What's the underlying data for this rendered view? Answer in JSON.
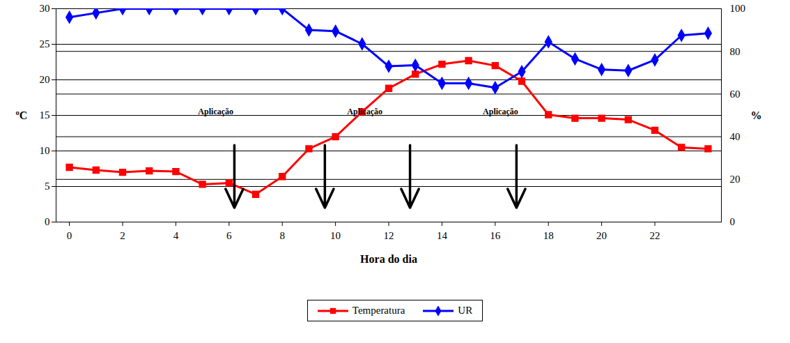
{
  "chart_data": {
    "type": "line",
    "xlabel": "Hora do dia",
    "ylabel": "ºC",
    "y2label": "%",
    "x": [
      0,
      1,
      2,
      3,
      4,
      5,
      6,
      7,
      8,
      9,
      10,
      11,
      12,
      13,
      14,
      15,
      16,
      17,
      18,
      19,
      20,
      21,
      22,
      23,
      24
    ],
    "series": [
      {
        "name": "Temperatura",
        "color": "#ff0000",
        "marker": "square",
        "values": [
          7.7,
          7.3,
          7.0,
          7.2,
          7.1,
          5.3,
          5.5,
          3.9,
          6.4,
          10.3,
          12.0,
          15.5,
          18.8,
          20.8,
          22.2,
          22.7,
          22.0,
          19.8,
          15.1,
          14.6,
          14.6,
          14.4,
          12.9,
          10.5,
          10.3
        ]
      },
      {
        "name": "UR",
        "color": "#0000ff",
        "marker": "diamond",
        "axis": "y2",
        "values": [
          96,
          98,
          100,
          100,
          100,
          100,
          100,
          100,
          100,
          90,
          89.5,
          83.5,
          73,
          73.5,
          65,
          65,
          63,
          70.5,
          84.5,
          76.5,
          71.5,
          71,
          76,
          87.5,
          88.5
        ]
      }
    ],
    "xlim": [
      -0.5,
      24.5
    ],
    "xticks": [
      0,
      2,
      4,
      6,
      8,
      10,
      12,
      14,
      16,
      18,
      20,
      22
    ],
    "ylim": [
      0,
      30
    ],
    "yticks": [
      0,
      5,
      10,
      15,
      20,
      25,
      30
    ],
    "y2lim": [
      0,
      100
    ],
    "y2ticks": [
      0,
      20,
      40,
      60,
      80,
      100
    ],
    "grid": true,
    "legend": "bottom",
    "annotations": [
      {
        "text": "Aplicação",
        "x": 5.5,
        "y": 15.5
      },
      {
        "text": "Aplicação",
        "x": 11.1,
        "y": 15.5
      },
      {
        "text": "Aplicação",
        "x": 16.2,
        "y": 15.5
      }
    ],
    "arrows": [
      {
        "x": 6.2,
        "y1": 10.8,
        "y2": 2
      },
      {
        "x": 9.6,
        "y1": 10.8,
        "y2": 2
      },
      {
        "x": 12.8,
        "y1": 10.8,
        "y2": 2
      },
      {
        "x": 16.8,
        "y1": 10.8,
        "y2": 2
      }
    ]
  }
}
